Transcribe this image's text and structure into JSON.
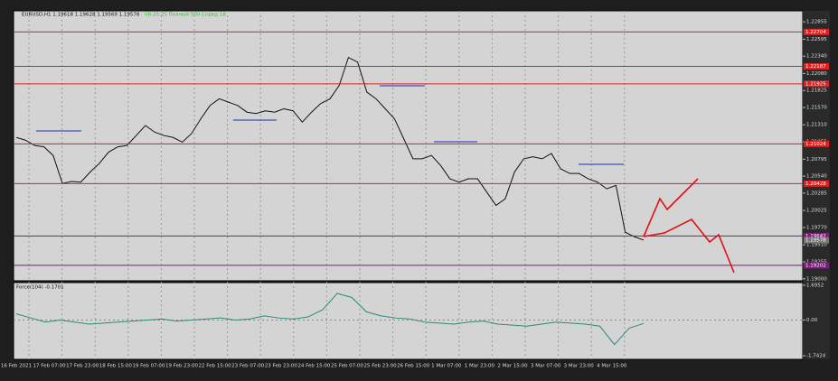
{
  "header": {
    "symbol": "EURUSD,H1  1.19618 1.19628 1.19569 1.19578",
    "status": "08:25:25 Полный 500 Спред 18"
  },
  "chart_data": [
    {
      "type": "line",
      "color": "#111111",
      "values": [
        1.2112,
        1.2108,
        1.21,
        1.2098,
        1.2085,
        1.2043,
        1.2046,
        1.2045,
        1.206,
        1.2073,
        1.209,
        1.2098,
        1.21,
        1.2115,
        1.213,
        1.212,
        1.2115,
        1.2112,
        1.2105,
        1.2118,
        1.214,
        1.216,
        1.217,
        1.2165,
        1.216,
        1.215,
        1.2148,
        1.2152,
        1.215,
        1.2155,
        1.2152,
        1.2135,
        1.215,
        1.2163,
        1.217,
        1.219,
        1.2232,
        1.2225,
        1.218,
        1.217,
        1.2155,
        1.214,
        1.211,
        1.208,
        1.208,
        1.2085,
        1.207,
        1.205,
        1.2045,
        1.205,
        1.205,
        1.203,
        1.201,
        1.202,
        1.206,
        1.208,
        1.2083,
        1.208,
        1.2088,
        1.2065,
        1.2058,
        1.2058,
        1.205,
        1.2045,
        1.2035,
        1.204,
        1.197,
        1.1963,
        1.1958
      ],
      "ylim": [
        1.1897,
        1.2302
      ],
      "yticks": [
        1.22855,
        1.22595,
        {
          "value": 1.2234,
          "label": "1.22340"
        },
        {
          "value": 1.2208,
          "label": "1.22080"
        },
        1.21825,
        {
          "value": 1.2157,
          "label": "1.21570"
        },
        {
          "value": 1.2131,
          "label": "1.21310"
        },
        1.21055,
        1.20795,
        {
          "value": 1.2054,
          "label": "1.20540"
        },
        1.20285,
        1.20025,
        {
          "value": 1.1977,
          "label": "1.19770"
        },
        {
          "value": 1.1951,
          "label": "1.19510"
        },
        1.19255,
        {
          "value": 1.19,
          "label": "1.19000"
        }
      ],
      "levels": [
        {
          "value": 1.22704,
          "color": "#e02020"
        },
        {
          "value": 1.22187,
          "color": "#e02020"
        },
        {
          "value": 1.21925,
          "color": "#e02020"
        },
        {
          "value": 1.21024,
          "color": "#e02020"
        },
        {
          "value": 1.20428,
          "color": "#e02020"
        },
        {
          "value": 1.19642,
          "color": "#7a1f7a"
        },
        {
          "value": 1.19202,
          "color": "#7a1f7a"
        }
      ],
      "current_price": 1.19578,
      "xticks": [
        "16 Feb 2021",
        "17 Feb 07:00",
        "17 Feb 23:00",
        "18 Feb 15:00",
        "19 Feb 07:00",
        "19 Feb 23:00",
        "22 Feb 15:00",
        "23 Feb 07:00",
        "23 Feb 23:00",
        "24 Feb 15:00",
        "25 Feb 07:00",
        "25 Feb 23:00",
        "26 Feb 15:00",
        "1 Mar 07:00",
        "1 Mar 23:00",
        "2 Mar 15:00",
        "3 Mar 07:00",
        "3 Mar 23:00",
        "4 Mar 15:00"
      ]
    },
    {
      "type": "line",
      "title": "Force(104) -0.1701",
      "color": "#2a8a7a",
      "values": [
        0.3,
        0.1,
        -0.1,
        0,
        -0.1,
        -0.2,
        -0.15,
        -0.1,
        -0.05,
        0,
        0.05,
        -0.05,
        0,
        0.05,
        0.1,
        0,
        0.05,
        0.2,
        0.1,
        0.05,
        0.15,
        0.5,
        1.3,
        1.1,
        0.4,
        0.2,
        0.1,
        0.05,
        -0.1,
        -0.15,
        -0.2,
        -0.1,
        -0.05,
        -0.2,
        -0.25,
        -0.3,
        -0.2,
        -0.1,
        -0.15,
        -0.2,
        -0.3,
        -1.2,
        -0.4,
        -0.17
      ],
      "ylim": [
        -1.919,
        1.827
      ],
      "yticks": [
        1.6952,
        {
          "value": 0,
          "label": "0.00"
        },
        -1.7424
      ]
    }
  ]
}
